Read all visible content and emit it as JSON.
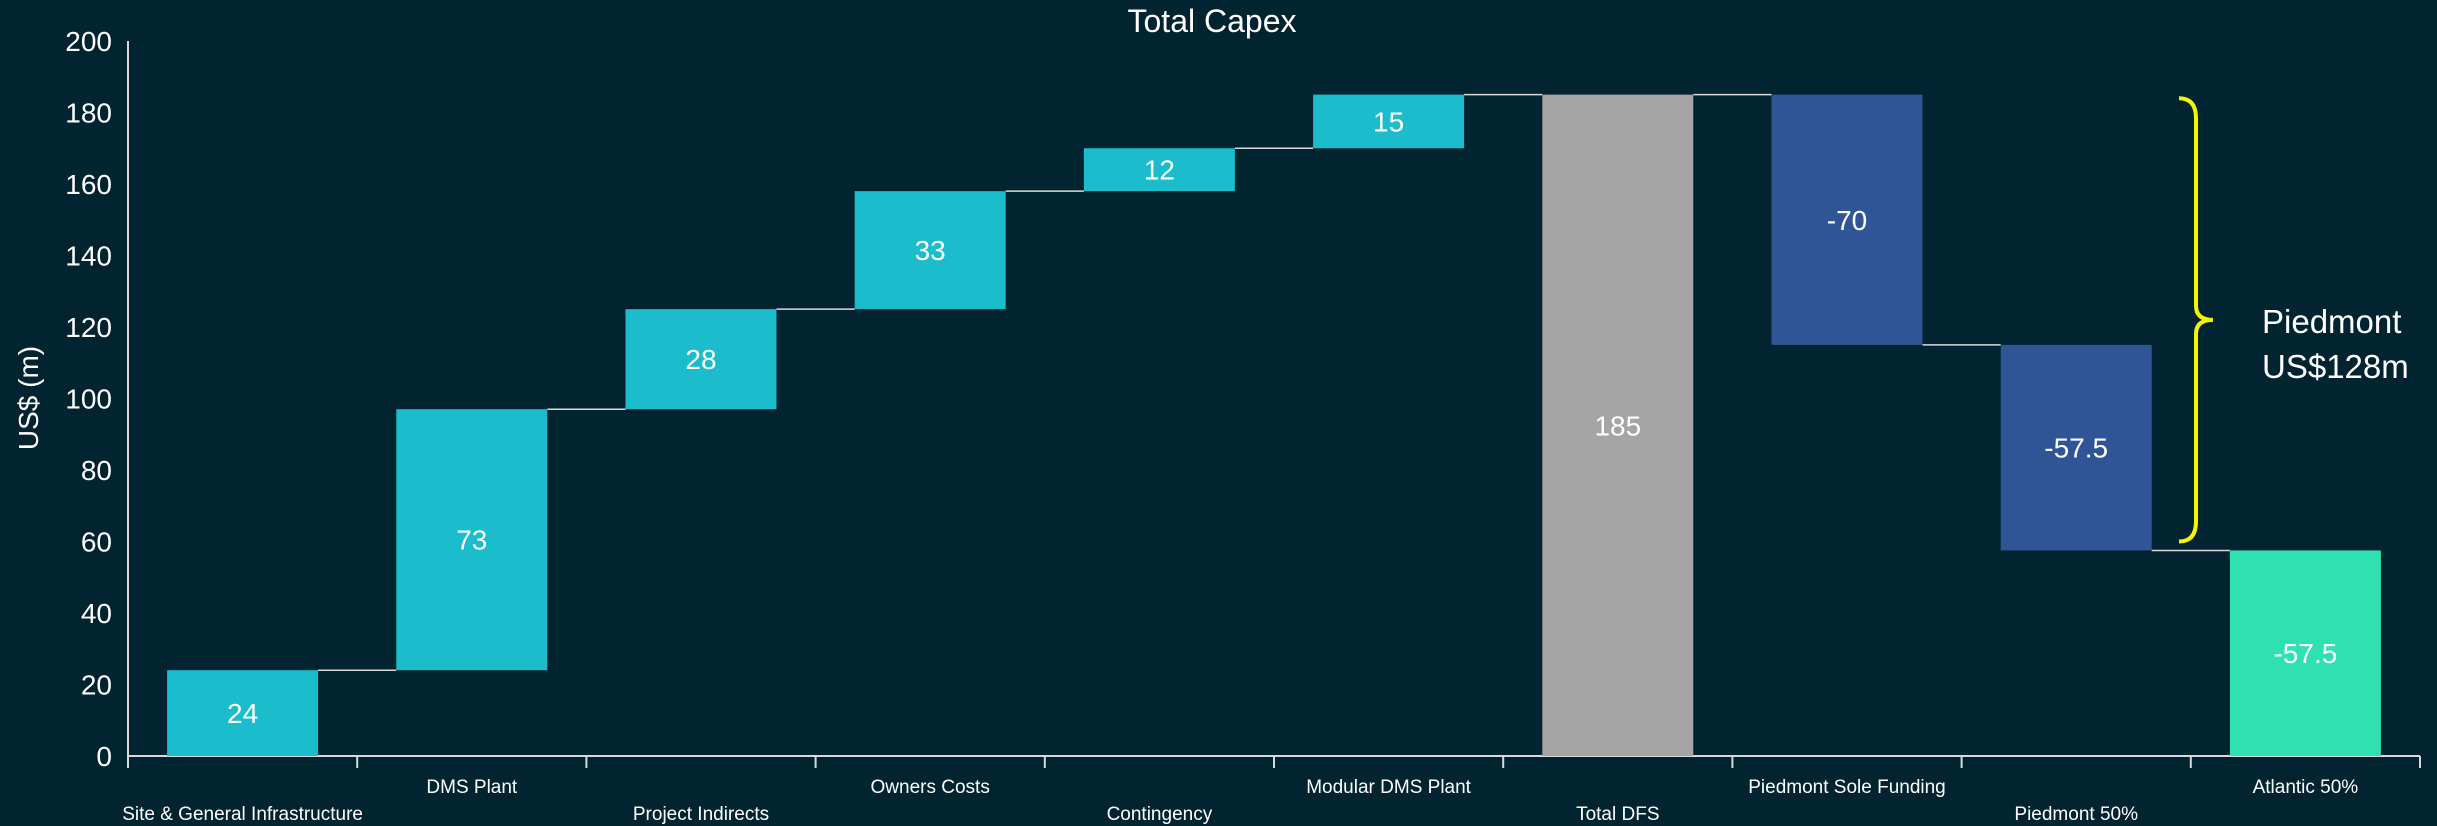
{
  "chart_data": {
    "type": "bar",
    "title": "Total Capex",
    "ylabel": "US$ (m)",
    "xlabel": "",
    "ylim": [
      0,
      200
    ],
    "yticks": [
      0,
      20,
      40,
      60,
      80,
      100,
      120,
      140,
      160,
      180,
      200
    ],
    "grid": false,
    "legend": "none",
    "bars": [
      {
        "category": "Site & General Infrastructure",
        "label": "24",
        "bottom": 0,
        "top": 24,
        "color": "#1bbccc"
      },
      {
        "category": "DMS Plant",
        "label": "73",
        "bottom": 24,
        "top": 97,
        "color": "#1bbccc"
      },
      {
        "category": "Project Indirects",
        "label": "28",
        "bottom": 97,
        "top": 125,
        "color": "#1bbccc"
      },
      {
        "category": "Owners Costs",
        "label": "33",
        "bottom": 125,
        "top": 158,
        "color": "#1bbccc"
      },
      {
        "category": "Contingency",
        "label": "12",
        "bottom": 158,
        "top": 170,
        "color": "#1bbccc"
      },
      {
        "category": "Modular DMS Plant",
        "label": "15",
        "bottom": 170,
        "top": 185,
        "color": "#1bbccc"
      },
      {
        "category": "Total DFS",
        "label": "185",
        "bottom": 0,
        "top": 185,
        "color": "#a5a5a5"
      },
      {
        "category": "Piedmont Sole Funding",
        "label": "-70",
        "bottom": 115,
        "top": 185,
        "color": "#2f5597"
      },
      {
        "category": "Piedmont 50%",
        "label": "-57.5",
        "bottom": 57.5,
        "top": 115,
        "color": "#2f5597"
      },
      {
        "category": "Atlantic 50%",
        "label": "-57.5",
        "bottom": 0,
        "top": 57.5,
        "color": "#2fe0b0"
      }
    ],
    "annotations": {
      "bracket_range": [
        60,
        184
      ],
      "bracket_color": "#f5f500",
      "line1": "Piedmont",
      "line2": "US$128m"
    }
  }
}
